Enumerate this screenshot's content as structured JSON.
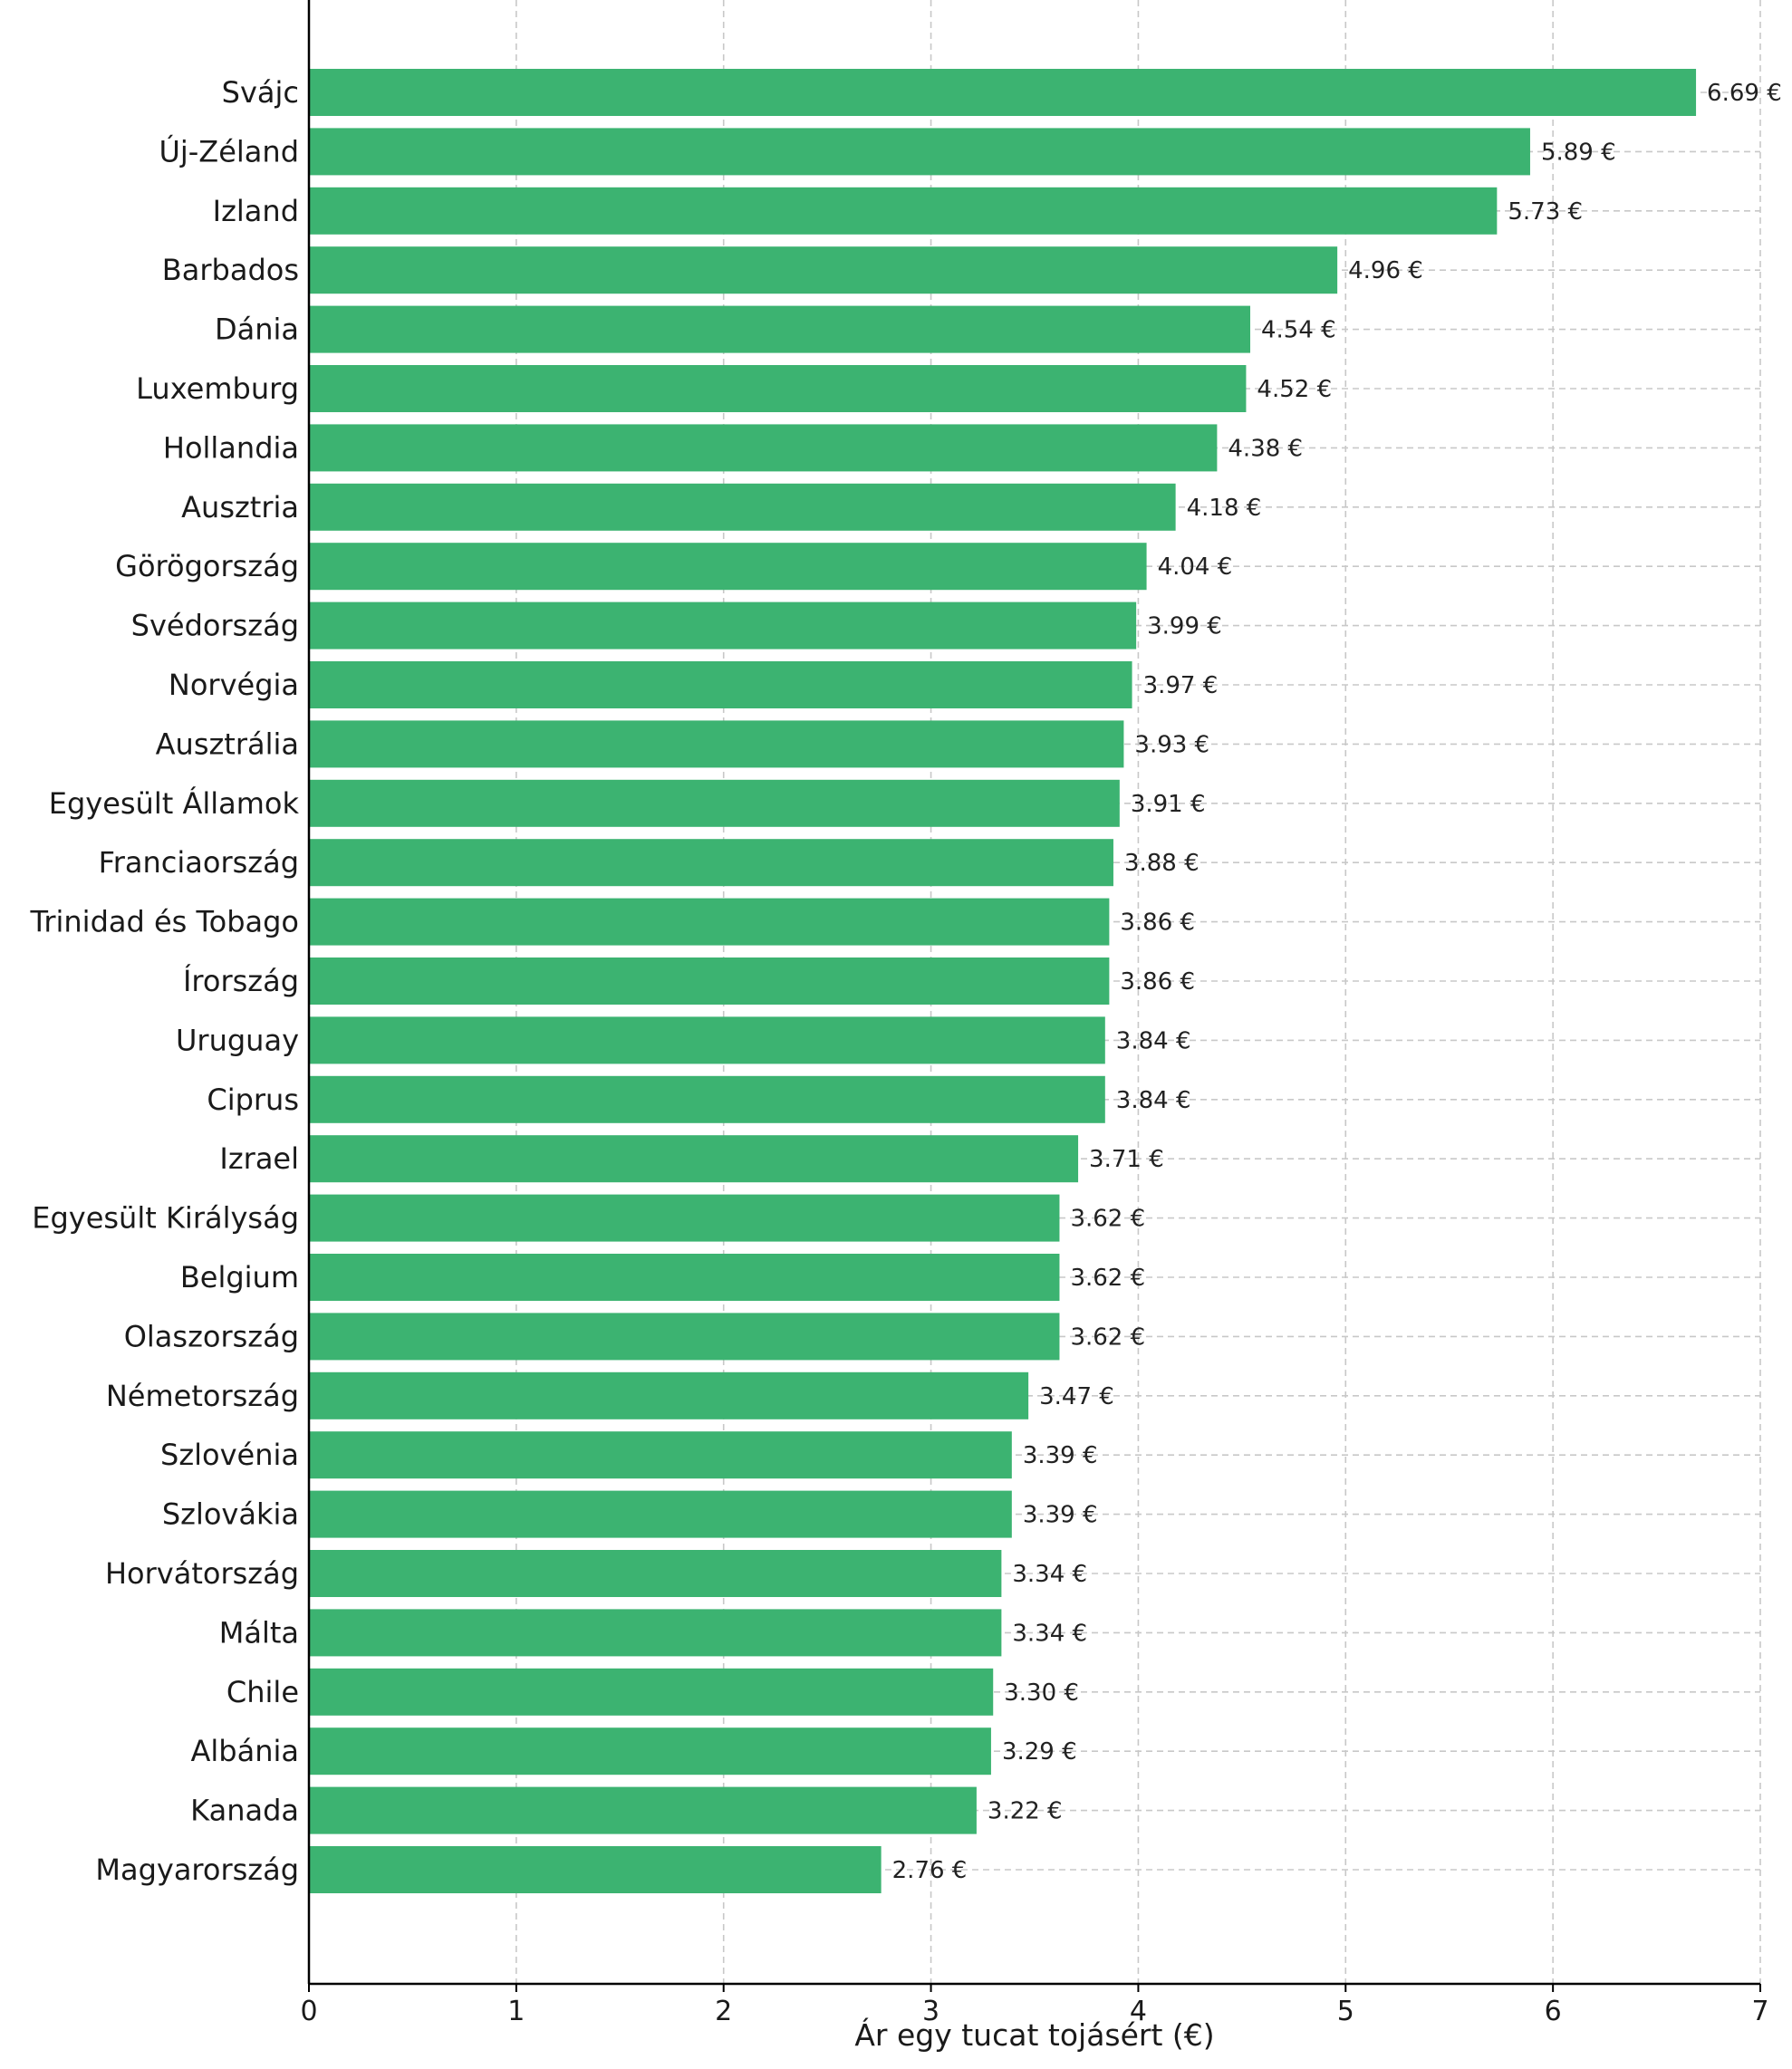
{
  "chart_data": {
    "type": "bar",
    "orientation": "horizontal",
    "categories": [
      "Svájc",
      "Új-Zéland",
      "Izland",
      "Barbados",
      "Dánia",
      "Luxemburg",
      "Hollandia",
      "Ausztria",
      "Görögország",
      "Svédország",
      "Norvégia",
      "Ausztrália",
      "Egyesült Államok",
      "Franciaország",
      "Trinidad és Tobago",
      "Írország",
      "Uruguay",
      "Ciprus",
      "Izrael",
      "Egyesült Királyság",
      "Belgium",
      "Olaszország",
      "Németország",
      "Szlovénia",
      "Szlovákia",
      "Horvátország",
      "Málta",
      "Chile",
      "Albánia",
      "Kanada",
      "Magyarország"
    ],
    "values": [
      6.69,
      5.89,
      5.73,
      4.96,
      4.54,
      4.52,
      4.38,
      4.18,
      4.04,
      3.99,
      3.97,
      3.93,
      3.91,
      3.88,
      3.86,
      3.86,
      3.84,
      3.84,
      3.71,
      3.62,
      3.62,
      3.62,
      3.47,
      3.39,
      3.39,
      3.34,
      3.34,
      3.3,
      3.29,
      3.22,
      2.76
    ],
    "value_labels": [
      "6.69 €",
      "5.89 €",
      "5.73 €",
      "4.96 €",
      "4.54 €",
      "4.52 €",
      "4.38 €",
      "4.18 €",
      "4.04 €",
      "3.99 €",
      "3.97 €",
      "3.93 €",
      "3.91 €",
      "3.88 €",
      "3.86 €",
      "3.86 €",
      "3.84 €",
      "3.84 €",
      "3.71 €",
      "3.62 €",
      "3.62 €",
      "3.62 €",
      "3.47 €",
      "3.39 €",
      "3.39 €",
      "3.34 €",
      "3.34 €",
      "3.30 €",
      "3.29 €",
      "3.22 €",
      "2.76 €"
    ],
    "title": "",
    "xlabel": "Ár egy tucat tojásért (€)",
    "ylabel": "",
    "xlim": [
      0,
      7
    ],
    "xticks": [
      "0",
      "1",
      "2",
      "3",
      "4",
      "5",
      "6",
      "7"
    ],
    "grid": true,
    "bar_color": "#3cb371"
  }
}
